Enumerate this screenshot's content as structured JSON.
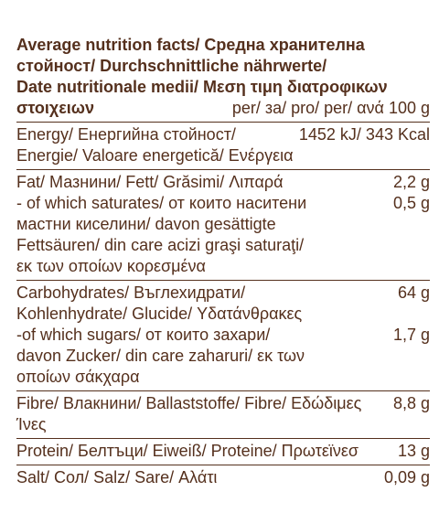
{
  "header": {
    "line1": "Average nutrition facts/ Средна хранителна",
    "line2": "стойност/ Durchschnittliche nährwerte/",
    "line3": "Date nutritionale medii/ Μεση τιμη διατροφικων",
    "line4_bold": "στοιχειων",
    "line4_per": "per/ за/ pro/ per/ ανά 100 g"
  },
  "energy": {
    "label": "Energy/ Енергийна стойност/",
    "value": "1452 kJ/ 343 Kcal",
    "line2": "Energie/ Valoare energetică/ Ενέργεια"
  },
  "fat": {
    "label": "Fat/ Мазнини/ Fett/ Grăsimi/ Λιπαρά",
    "value": "2,2 g",
    "sat_label": "- of which saturates/ от които наситени",
    "sat_value": "0,5 g",
    "sat_line2": "мастни киселини/ davon gesättigte",
    "sat_line3": "Fettsäuren/ din care acizi graşi saturaţi/",
    "sat_line4": "εκ των οποίων κορεσμένα"
  },
  "carbs": {
    "label": "Carbohydrates/ Въглехидрати/",
    "value": "64 g",
    "line2": "Kohlenhydrate/ Glucide/ Υδατάνθρακες",
    "sugar_label": "-of which sugars/ от които захари/",
    "sugar_value": "1,7 g",
    "sugar_line2": "davon Zucker/ din care zaharuri/ εκ των",
    "sugar_line3": "οποίων σάκχαρα"
  },
  "fibre": {
    "label": "Fibre/ Влакнини/ Ballaststoffe/ Fibre/ Εδώδιμες Ίνες",
    "value": "8,8 g"
  },
  "protein": {
    "label": "Protein/ Белтъци/ Eiweiß/ Proteine/ Πρωτεϊνεσ",
    "value": "13 g"
  },
  "salt": {
    "label": "Salt/ Сол/ Salz/ Sare/ Αλάτι",
    "value": "0,09 g"
  }
}
